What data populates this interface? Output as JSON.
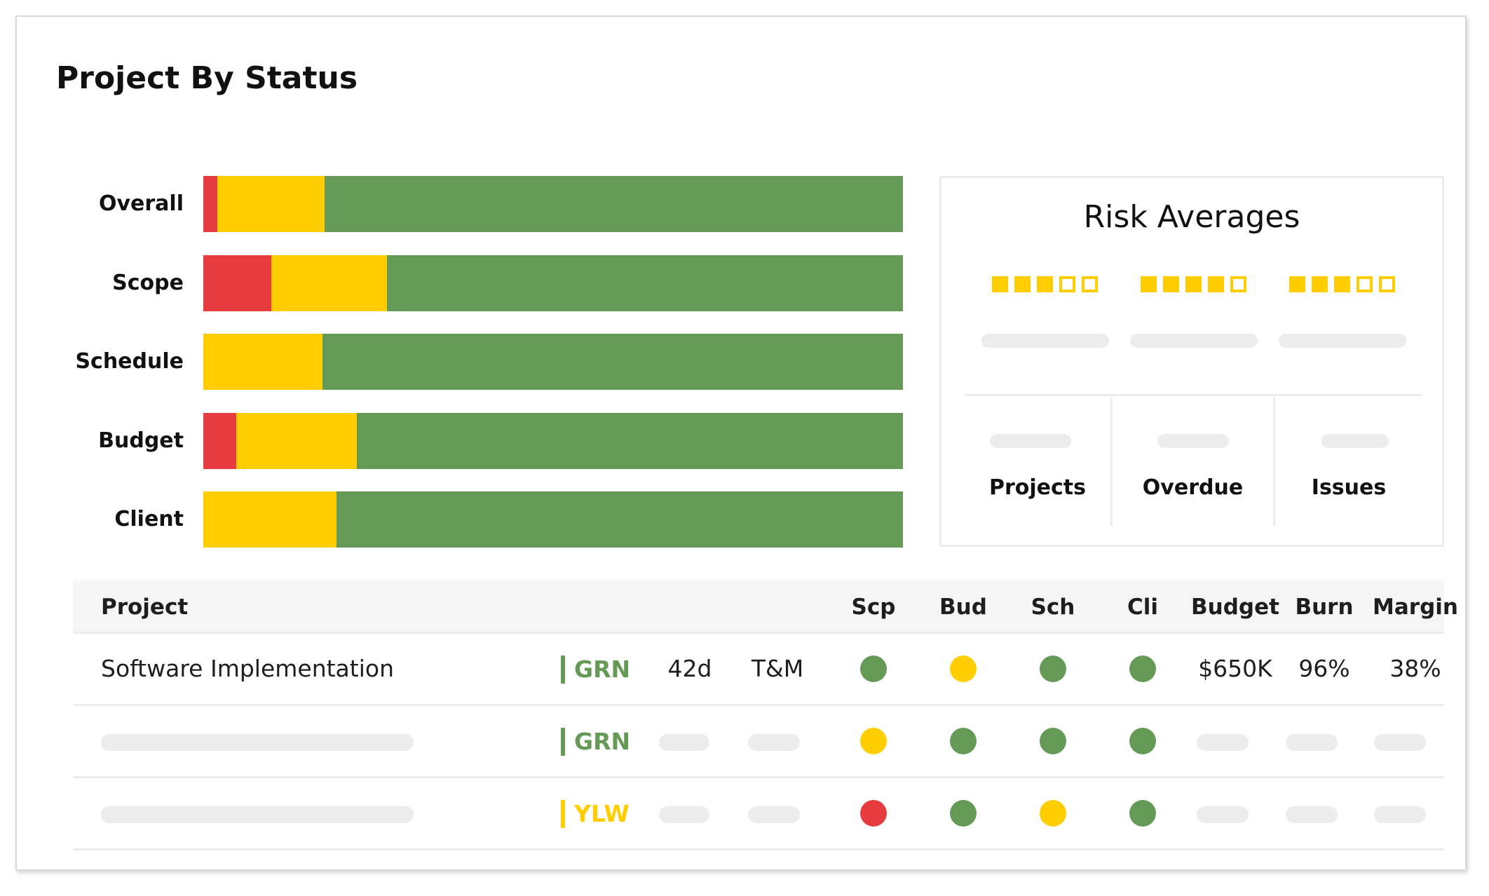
{
  "title": "Project By Status",
  "colors": {
    "red": "#e63c3f",
    "yellow": "#ffcd00",
    "green": "#649a55"
  },
  "status_bars": [
    {
      "label": "Overall",
      "red": 2.0,
      "yellow": 15.3,
      "green": 82.7
    },
    {
      "label": "Scope",
      "red": 9.7,
      "yellow": 16.6,
      "green": 73.7
    },
    {
      "label": "Schedule",
      "red": 0,
      "yellow": 17.0,
      "green": 83.0
    },
    {
      "label": "Budget",
      "red": 4.7,
      "yellow": 17.2,
      "green": 78.1
    },
    {
      "label": "Client",
      "red": 0,
      "yellow": 19.0,
      "green": 81.0
    }
  ],
  "risk": {
    "title": "Risk Averages",
    "ratings": [
      {
        "filled": 3,
        "total": 5
      },
      {
        "filled": 4,
        "total": 5
      },
      {
        "filled": 3,
        "total": 5
      }
    ],
    "stats": [
      {
        "label": "Projects"
      },
      {
        "label": "Overdue"
      },
      {
        "label": "Issues"
      }
    ]
  },
  "table": {
    "headers": {
      "project": "Project",
      "scp": "Scp",
      "bud": "Bud",
      "sch": "Sch",
      "cli": "Cli",
      "budget": "Budget",
      "burn": "Burn",
      "margin": "Margin"
    },
    "rows": [
      {
        "name": "Software Implementation",
        "status": "GRN",
        "status_color": "green",
        "duration": "42d",
        "type": "T&M",
        "indicators": [
          "green",
          "yellow",
          "green",
          "green"
        ],
        "budget": "$650K",
        "burn": "96%",
        "margin": "38%"
      },
      {
        "name": "",
        "status": "GRN",
        "status_color": "green",
        "duration": "",
        "type": "",
        "indicators": [
          "yellow",
          "green",
          "green",
          "green"
        ],
        "budget": "",
        "burn": "",
        "margin": ""
      },
      {
        "name": "",
        "status": "YLW",
        "status_color": "yellow",
        "duration": "",
        "type": "",
        "indicators": [
          "red",
          "green",
          "yellow",
          "green"
        ],
        "budget": "",
        "burn": "",
        "margin": ""
      }
    ]
  }
}
